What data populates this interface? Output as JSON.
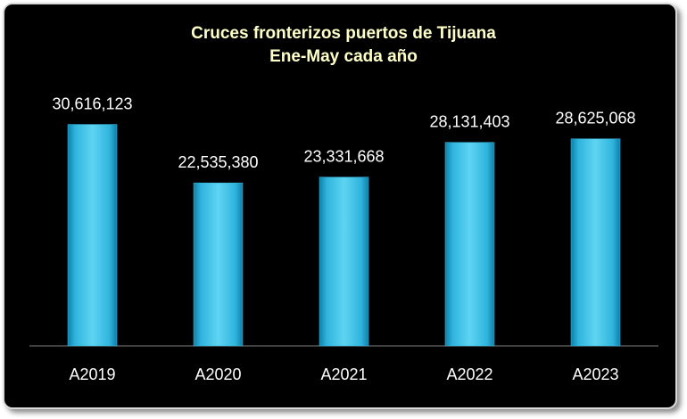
{
  "chart_data": {
    "type": "bar",
    "title": "Cruces fronterizos puertos de Tijuana",
    "subtitle": "Ene-May cada año",
    "categories": [
      "A2019",
      "A2020",
      "A2021",
      "A2022",
      "A2023"
    ],
    "values": [
      30616123,
      22535380,
      23331668,
      28131403,
      28625068
    ],
    "value_labels": [
      "30,616,123",
      "22,535,380",
      "23,331,668",
      "28,131,403",
      "28,625,068"
    ],
    "color": "#3ec1e6",
    "ylim": [
      0,
      35000000
    ]
  }
}
